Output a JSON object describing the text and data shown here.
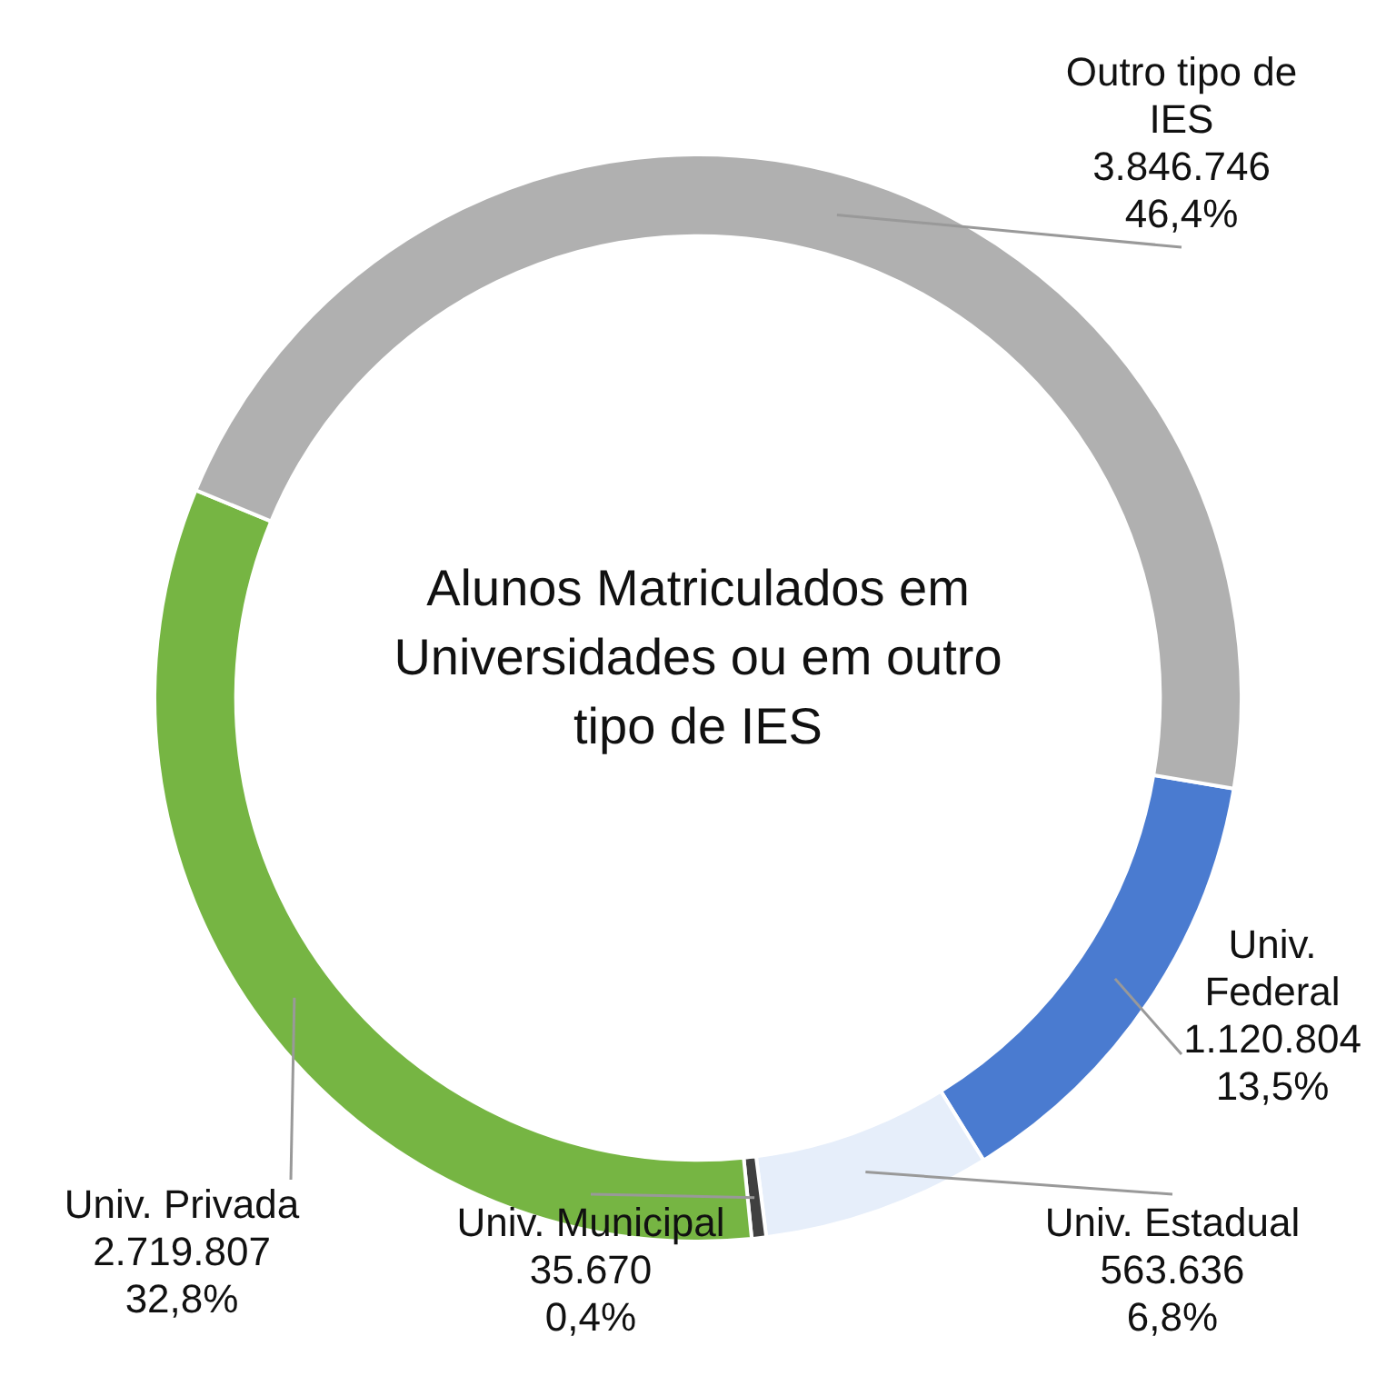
{
  "chart_data": {
    "type": "donut",
    "title": "Alunos Matriculados em Universidades ou em outro tipo de IES",
    "categories": [
      "Univ. Federal",
      "Univ. Estadual",
      "Univ. Municipal",
      "Univ. Privada",
      "Outro tipo de IES"
    ],
    "values": [
      1120804,
      563636,
      35670,
      2719807,
      3846746
    ],
    "colors": [
      "#4a7bd0",
      "#e6eefa",
      "#404040",
      "#76b543",
      "#b0b0b0"
    ],
    "value_labels": [
      "1.120.804\n13,5%",
      "563.636\n6,8%",
      "35.670\n0,4%",
      "2.719.807\n32,8%",
      "3.846.746\n46,4%"
    ],
    "legend": false
  }
}
